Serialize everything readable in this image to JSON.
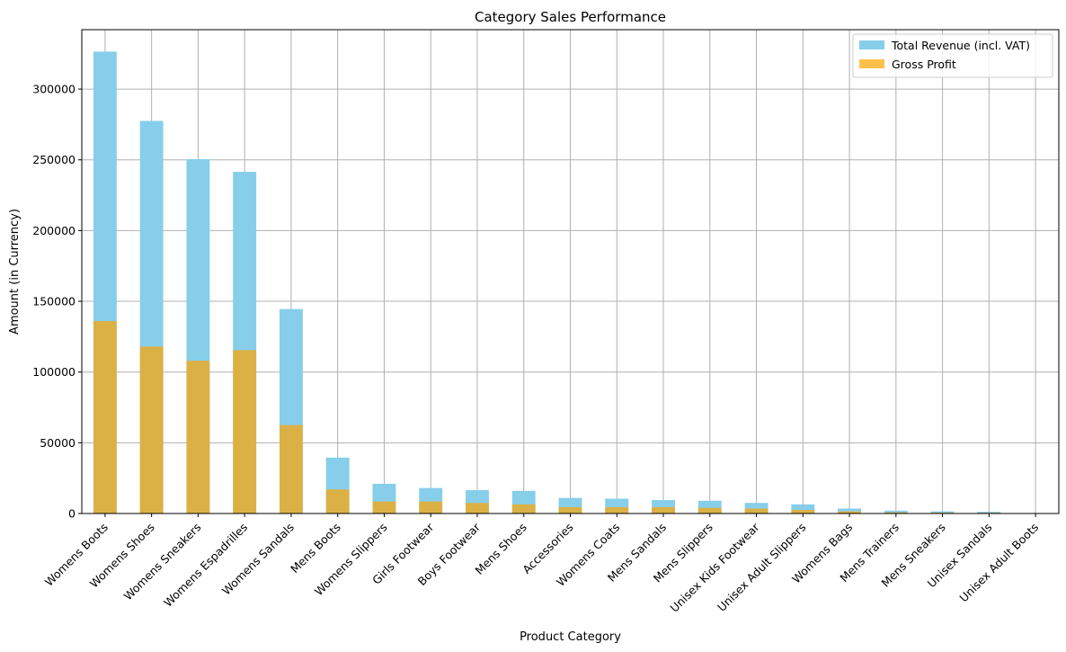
{
  "chart_data": {
    "type": "bar",
    "title": "Category Sales Performance",
    "xlabel": "Product Category",
    "ylabel": "Amount (in Currency)",
    "categories": [
      "Womens Boots",
      "Womens Shoes",
      "Womens Sneakers",
      "Womens Espadrilles",
      "Womens Sandals",
      "Mens Boots",
      "Womens Slippers",
      "Girls Footwear",
      "Boys Footwear",
      "Mens Shoes",
      "Accessories",
      "Womens Coats",
      "Mens Sandals",
      "Mens Slippers",
      "Unisex Kids Footwear",
      "Unisex Adult Slippers",
      "Womens Bags",
      "Mens Trainers",
      "Mens Sneakers",
      "Unisex Sandals",
      "Unisex Adult Boots"
    ],
    "series": [
      {
        "name": "Total Revenue (incl. VAT)",
        "color": "#87ceeb",
        "values": [
          326500,
          277500,
          250500,
          241500,
          144500,
          39500,
          21000,
          18000,
          16500,
          16000,
          11000,
          10500,
          9500,
          9000,
          7500,
          6500,
          3500,
          2000,
          1500,
          1200,
          300
        ]
      },
      {
        "name": "Gross Profit",
        "color": "#ffa500",
        "values": [
          136000,
          118000,
          108000,
          115500,
          62500,
          17000,
          8500,
          8500,
          7500,
          6500,
          4500,
          4500,
          4500,
          4000,
          3500,
          2500,
          1500,
          800,
          600,
          500,
          100
        ]
      }
    ],
    "ylim": [
      0,
      342000
    ],
    "yticks": [
      0,
      50000,
      100000,
      150000,
      200000,
      250000,
      300000
    ],
    "grid": true,
    "legend_position": "top-right",
    "overlay_opacity": 0.7
  }
}
